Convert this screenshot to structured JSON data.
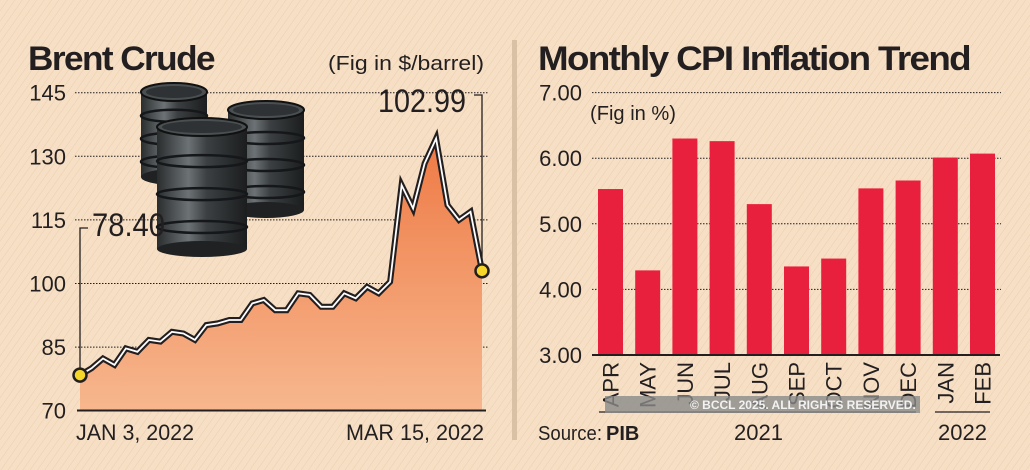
{
  "colors": {
    "background": "#f6dfc4",
    "area_fill": "#f0915e",
    "bar": "#e8203d",
    "marker": "#f5d629",
    "text": "#231f20"
  },
  "chart_data": [
    {
      "type": "area",
      "title": "Brent Crude",
      "unit_note": "(Fig in $/barrel)",
      "ylim": [
        70,
        145
      ],
      "yticks": [
        70,
        85,
        100,
        115,
        130,
        145
      ],
      "ytick_labels": [
        "70",
        "85",
        "100",
        "115",
        "130",
        "145"
      ],
      "grid": "horizontal dotted",
      "x_labels": [
        "JAN 3, 2022",
        "MAR 15, 2022"
      ],
      "values": [
        78.4,
        80.0,
        82.3,
        80.8,
        84.7,
        83.9,
        86.7,
        86.3,
        88.6,
        88.2,
        86.7,
        90.2,
        90.6,
        91.4,
        91.4,
        95.3,
        96.1,
        93.7,
        93.7,
        97.7,
        97.3,
        94.5,
        94.5,
        97.7,
        96.5,
        99.2,
        97.7,
        100.4,
        123.2,
        117.7,
        128.3,
        134.2,
        118.5,
        115.0,
        116.9,
        102.99
      ],
      "annotations": {
        "start": "78.40",
        "end": "102.99"
      },
      "illustration": "oil-barrels"
    },
    {
      "type": "bar",
      "title": "Monthly CPI Inflation Trend",
      "unit_note": "(Fig in %)",
      "ylim": [
        3,
        7
      ],
      "yticks": [
        3,
        4,
        5,
        6,
        7
      ],
      "ytick_labels": [
        "3.00",
        "4.00",
        "5.00",
        "6.00",
        "7.00"
      ],
      "grid": "horizontal dotted",
      "categories": [
        "APR",
        "MAY",
        "JUN",
        "JUL",
        "AUG",
        "SEP",
        "OCT",
        "NOV",
        "DEC",
        "JAN",
        "FEB"
      ],
      "values": [
        5.53,
        4.29,
        6.3,
        6.26,
        5.3,
        4.35,
        4.47,
        5.54,
        5.66,
        6.01,
        6.07
      ],
      "year_groups": [
        "2021",
        "2022"
      ],
      "source_label": "Source:",
      "source_value": "PIB"
    }
  ],
  "watermark": "© BCCL 2025. ALL RIGHTS RESERVED."
}
